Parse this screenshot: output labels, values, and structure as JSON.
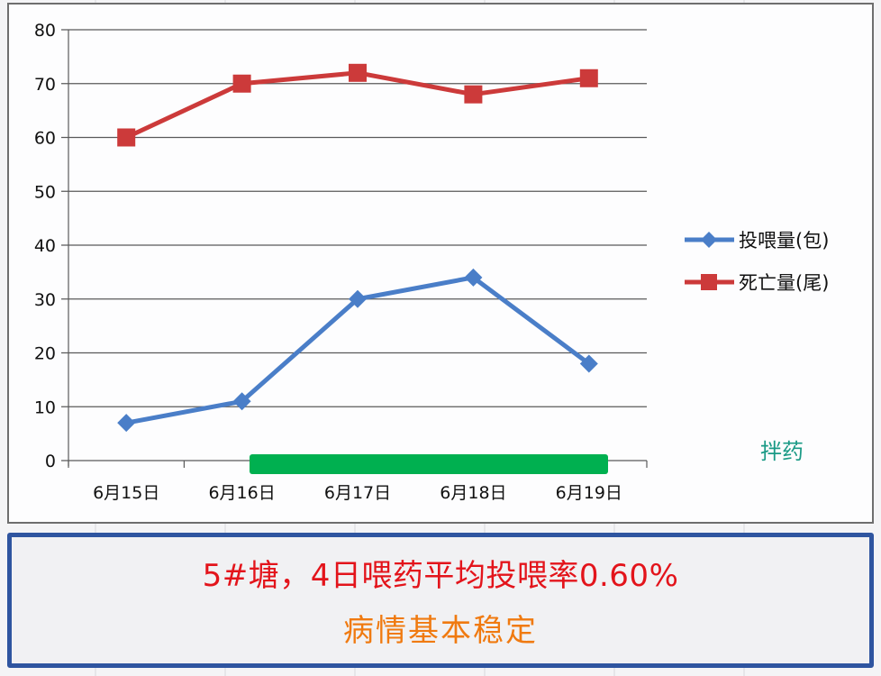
{
  "chart_data": {
    "type": "line",
    "title": "",
    "xlabel": "",
    "ylabel": "",
    "categories": [
      "6月15日",
      "6月16日",
      "6月17日",
      "6月18日",
      "6月19日"
    ],
    "series": [
      {
        "name": "投喂量(包)",
        "values": [
          7,
          11,
          30,
          34,
          18
        ],
        "color": "#4a7ec8",
        "marker": "diamond"
      },
      {
        "name": "死亡量(尾)",
        "values": [
          60,
          70,
          72,
          68,
          71
        ],
        "color": "#cc3a3a",
        "marker": "square"
      }
    ],
    "ylim": [
      0,
      80
    ],
    "yticks": [
      0,
      10,
      20,
      30,
      40,
      50,
      60,
      70,
      80
    ],
    "grid": true,
    "legend_position": "right",
    "annotations": [
      {
        "text": "拌药",
        "type": "bar-span",
        "from": "6月16日",
        "to": "6月19日",
        "color": "#00b050",
        "text_color": "#1a9a86"
      }
    ]
  },
  "legend": {
    "items": [
      {
        "label": "投喂量(包)",
        "color": "#4a7ec8"
      },
      {
        "label": "死亡量(尾)",
        "color": "#cc3a3a"
      }
    ]
  },
  "annotation": {
    "label": "拌药"
  },
  "note": {
    "line1": "5#塘，4日喂药平均投喂率0.60%",
    "line2": "病情基本稳定",
    "line1_color": "#e3141b",
    "line2_color": "#f07a10",
    "border_color": "#2f55a0"
  }
}
